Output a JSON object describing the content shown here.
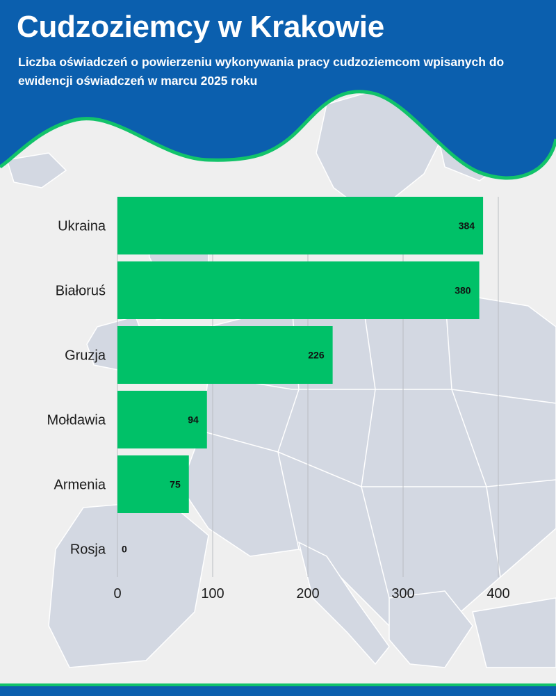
{
  "title": "Cudzoziemcy w Krakowie",
  "subtitle": "Liczba oświadczeń o powierzeniu wykonywania pracy cudzoziemcom wpisanych do ewidencji oświadczeń w marcu 2025 roku",
  "colors": {
    "header": "#0b5fae",
    "accent": "#12c36a",
    "bar": "#00c168",
    "background": "#efefef",
    "map": "#d3d8e2"
  },
  "chart_data": {
    "type": "bar",
    "orientation": "horizontal",
    "categories": [
      "Ukraina",
      "Białoruś",
      "Gruzja",
      "Mołdawia",
      "Armenia",
      "Rosja"
    ],
    "values": [
      384,
      380,
      226,
      94,
      75,
      0
    ],
    "data_labels": [
      "384",
      "380",
      "226",
      "94",
      "75",
      "0"
    ],
    "xticks": [
      "0",
      "100",
      "200",
      "300",
      "400"
    ],
    "xlim": [
      0,
      400
    ],
    "grid": true,
    "legend": "none"
  }
}
